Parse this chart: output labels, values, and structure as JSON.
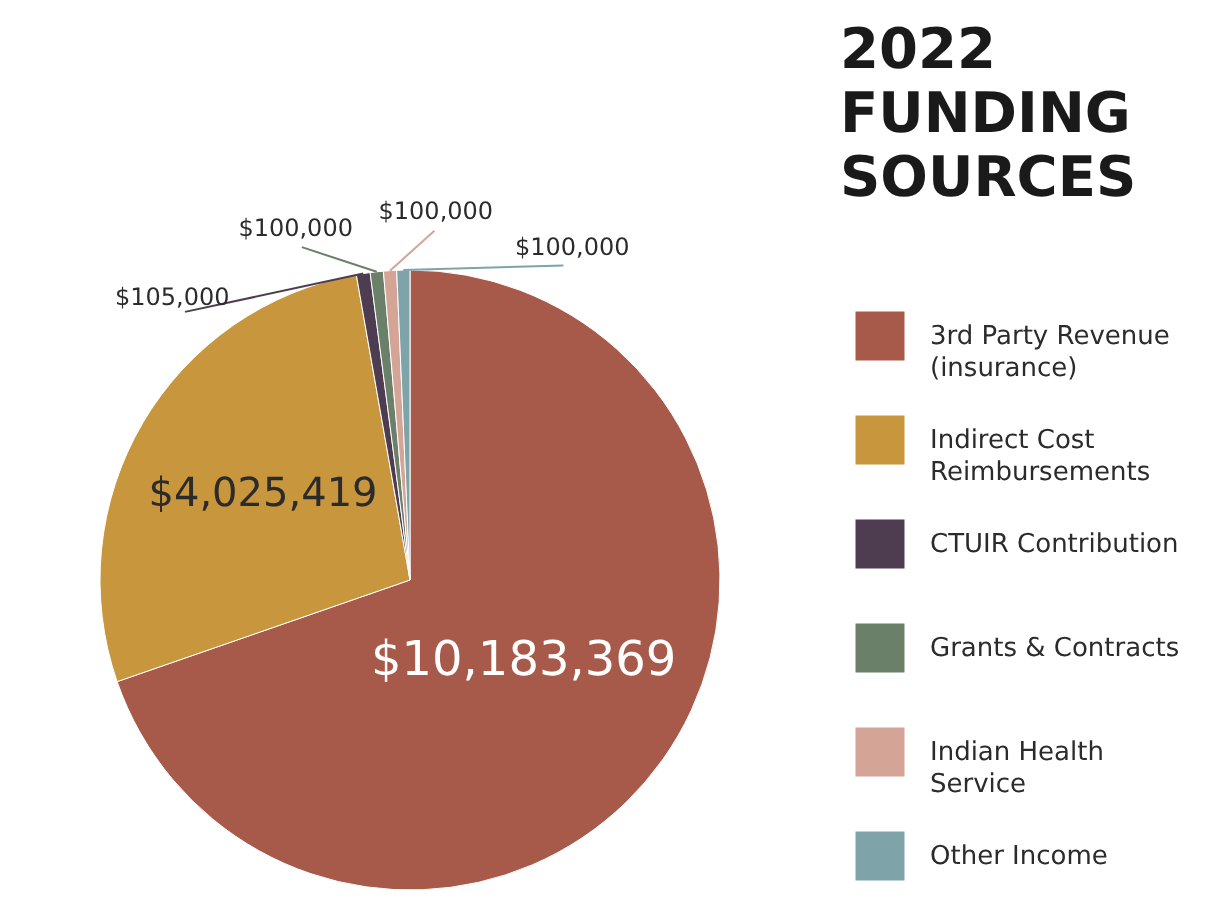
{
  "chart_data": {
    "type": "pie",
    "title": "2022 FUNDING SOURCES",
    "categories": [
      "3rd Party Revenue (insurance)",
      "Indirect Cost Reimbursements",
      "CTUIR Contribution",
      "Grants & Contracts",
      "Indian Health Service",
      "Other Income"
    ],
    "values": [
      10183369,
      4025419,
      105000,
      100000,
      100000,
      100000
    ],
    "value_labels": [
      "$10,183,369",
      "$4,025,419",
      "$105,000",
      "$100,000",
      "$100,000",
      "$100,000"
    ],
    "colors": [
      "#a85a4a",
      "#c8963c",
      "#4e3d50",
      "#6b8068",
      "#d4a497",
      "#7ea3a8"
    ],
    "legend": "right"
  }
}
